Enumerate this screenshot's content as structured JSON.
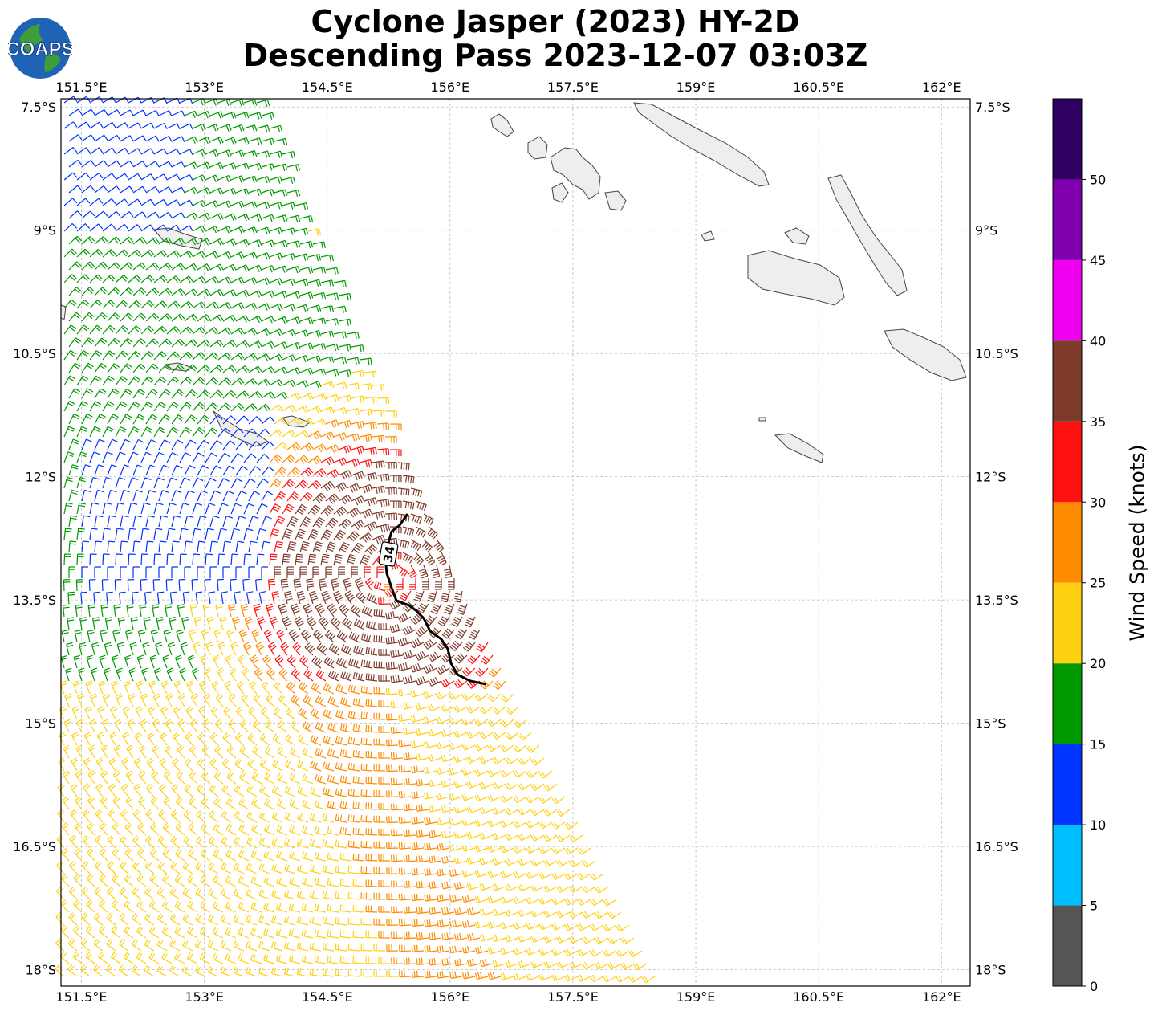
{
  "title": {
    "line1": "Cyclone Jasper (2023) HY-2D",
    "line2": "Descending Pass 2023-12-07 03:03Z"
  },
  "logo": {
    "text": "COAPS"
  },
  "map": {
    "lon_range": [
      151.25,
      162.35
    ],
    "lat_range": [
      -18.2,
      -7.4
    ],
    "lon_ticks": [
      151.5,
      153,
      154.5,
      156,
      157.5,
      159,
      160.5,
      162
    ],
    "lon_labels": [
      "151.5°E",
      "153°E",
      "154.5°E",
      "156°E",
      "157.5°E",
      "159°E",
      "160.5°E",
      "162°E"
    ],
    "lat_ticks": [
      -7.5,
      -9,
      -10.5,
      -12,
      -13.5,
      -15,
      -16.5,
      -18
    ],
    "lat_labels": [
      "7.5°S",
      "9°S",
      "10.5°S",
      "12°S",
      "13.5°S",
      "15°S",
      "16.5°S",
      "18°S"
    ],
    "contour_label": "34"
  },
  "colorbar": {
    "label": "Wind Speed (knots)",
    "bins": [
      {
        "from": 0,
        "to": 5,
        "color": "#555555"
      },
      {
        "from": 5,
        "to": 10,
        "color": "#00bfff"
      },
      {
        "from": 10,
        "to": 15,
        "color": "#0033ff"
      },
      {
        "from": 15,
        "to": 20,
        "color": "#009900"
      },
      {
        "from": 20,
        "to": 25,
        "color": "#ffd012"
      },
      {
        "from": 25,
        "to": 30,
        "color": "#ff8c00"
      },
      {
        "from": 30,
        "to": 35,
        "color": "#ff1010"
      },
      {
        "from": 35,
        "to": 40,
        "color": "#7f3b2a"
      },
      {
        "from": 40,
        "to": 45,
        "color": "#f000f0"
      },
      {
        "from": 45,
        "to": 50,
        "color": "#8000b0"
      },
      {
        "from": 50,
        "to": 55,
        "color": "#2e0060"
      }
    ],
    "tick_values": [
      0,
      5,
      10,
      15,
      20,
      25,
      30,
      35,
      40,
      45,
      50
    ],
    "tick_labels": [
      "0",
      "5",
      "10",
      "15",
      "20",
      "25",
      "30",
      "35",
      "40",
      "45",
      "50"
    ]
  }
}
